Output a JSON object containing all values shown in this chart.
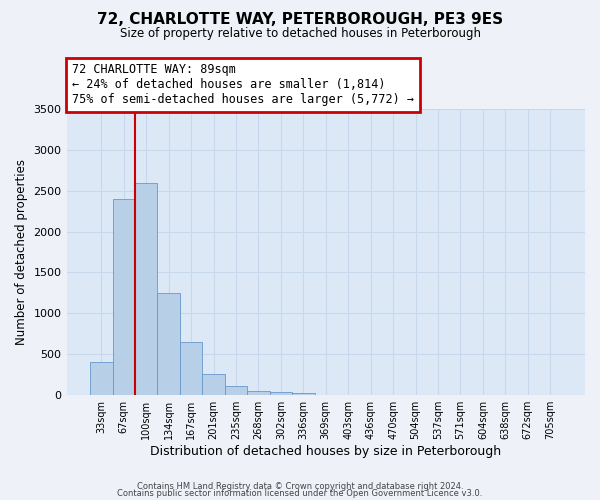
{
  "title": "72, CHARLOTTE WAY, PETERBOROUGH, PE3 9ES",
  "subtitle": "Size of property relative to detached houses in Peterborough",
  "xlabel": "Distribution of detached houses by size in Peterborough",
  "ylabel": "Number of detached properties",
  "categories": [
    "33sqm",
    "67sqm",
    "100sqm",
    "134sqm",
    "167sqm",
    "201sqm",
    "235sqm",
    "268sqm",
    "302sqm",
    "336sqm",
    "369sqm",
    "403sqm",
    "436sqm",
    "470sqm",
    "504sqm",
    "537sqm",
    "571sqm",
    "604sqm",
    "638sqm",
    "672sqm",
    "705sqm"
  ],
  "bar_values": [
    400,
    2400,
    2600,
    1250,
    650,
    260,
    105,
    50,
    30,
    20,
    0,
    0,
    0,
    0,
    0,
    0,
    0,
    0,
    0,
    0,
    0
  ],
  "bar_color": "#b8cfe8",
  "bar_edge_color": "#6699cc",
  "bar_width": 1.0,
  "vline_x_idx": 1.5,
  "vline_color": "#cc0000",
  "annotation_title": "72 CHARLOTTE WAY: 89sqm",
  "annotation_line1": "← 24% of detached houses are smaller (1,814)",
  "annotation_line2": "75% of semi-detached houses are larger (5,772) →",
  "annotation_box_color": "#cc0000",
  "ylim": [
    0,
    3500
  ],
  "yticks": [
    0,
    500,
    1000,
    1500,
    2000,
    2500,
    3000,
    3500
  ],
  "footer_line1": "Contains HM Land Registry data © Crown copyright and database right 2024.",
  "footer_line2": "Contains public sector information licensed under the Open Government Licence v3.0.",
  "bg_color": "#eef2f8",
  "plot_bg_color": "#dce8f5",
  "grid_color": "#c8d8ec"
}
